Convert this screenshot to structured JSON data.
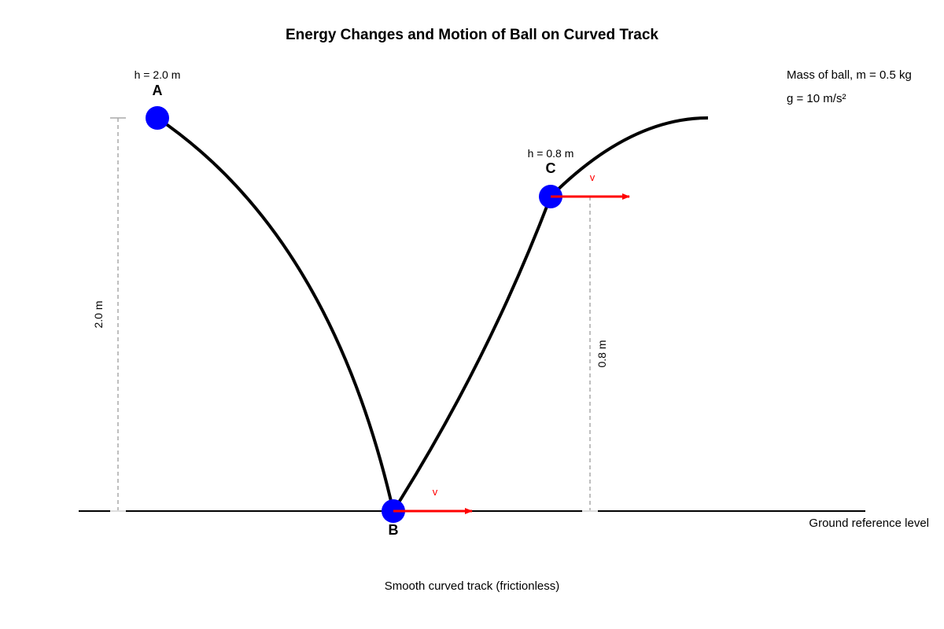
{
  "title": "Energy Changes and Motion of Ball on Curved Track",
  "points": {
    "A": {
      "label": "A",
      "height_label": "h = 2.0 m"
    },
    "B": {
      "label": "B"
    },
    "C": {
      "label": "C",
      "height_label": "h = 0.8 m"
    }
  },
  "dimensions": {
    "a_height": "2.0 m",
    "c_height": "0.8 m"
  },
  "velocity": {
    "b_label": "v",
    "c_label": "v"
  },
  "info": {
    "mass": "Mass of ball, m = 0.5 kg",
    "gravity": "g = 10 m/s²"
  },
  "ground_label": "Ground reference level",
  "track_caption": "Smooth curved track (frictionless)",
  "colors": {
    "ball": "#0000ff",
    "velocity": "#ff0000",
    "track": "#000000",
    "dimension": "#aaaaaa"
  }
}
